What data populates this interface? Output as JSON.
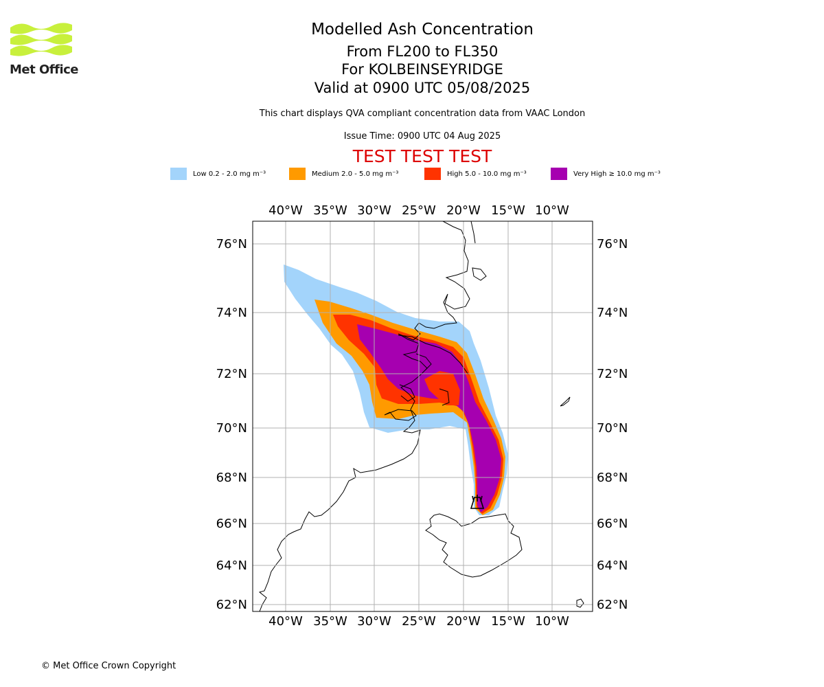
{
  "logo": {
    "text": "Met Office"
  },
  "header": {
    "title": "Modelled Ash Concentration",
    "range": "From FL200 to FL350",
    "location": "For KOLBEINSEYRIDGE",
    "valid": "Valid at 0900 UTC 05/08/2025",
    "description": "This chart displays QVA compliant concentration data from VAAC London",
    "issue_time": "Issue Time: 0900 UTC 04 Aug 2025",
    "test_banner": "TEST TEST TEST"
  },
  "legend": [
    {
      "label": "Low 0.2 - 2.0 mg m⁻³",
      "color": "#a3d4fb"
    },
    {
      "label": "Medium 2.0 - 5.0 mg m⁻³",
      "color": "#ff9a00"
    },
    {
      "label": "High 5.0 - 10.0 mg m⁻³",
      "color": "#ff3300"
    },
    {
      "label": "Very High ≥ 10.0 mg m⁻³",
      "color": "#a600b0"
    }
  ],
  "map": {
    "lon_labels": [
      "40°W",
      "35°W",
      "30°W",
      "25°W",
      "20°W",
      "15°W",
      "10°W"
    ],
    "lat_labels": [
      "76°N",
      "74°N",
      "72°N",
      "70°N",
      "68°N",
      "66°N",
      "64°N",
      "62°N"
    ],
    "volcano_marker": "volcano-icon",
    "colors": {
      "low": "#a3d4fb",
      "medium": "#ff9a00",
      "high": "#ff3300",
      "very_high": "#a600b0"
    }
  },
  "footer": {
    "copyright": "© Met Office Crown Copyright"
  }
}
